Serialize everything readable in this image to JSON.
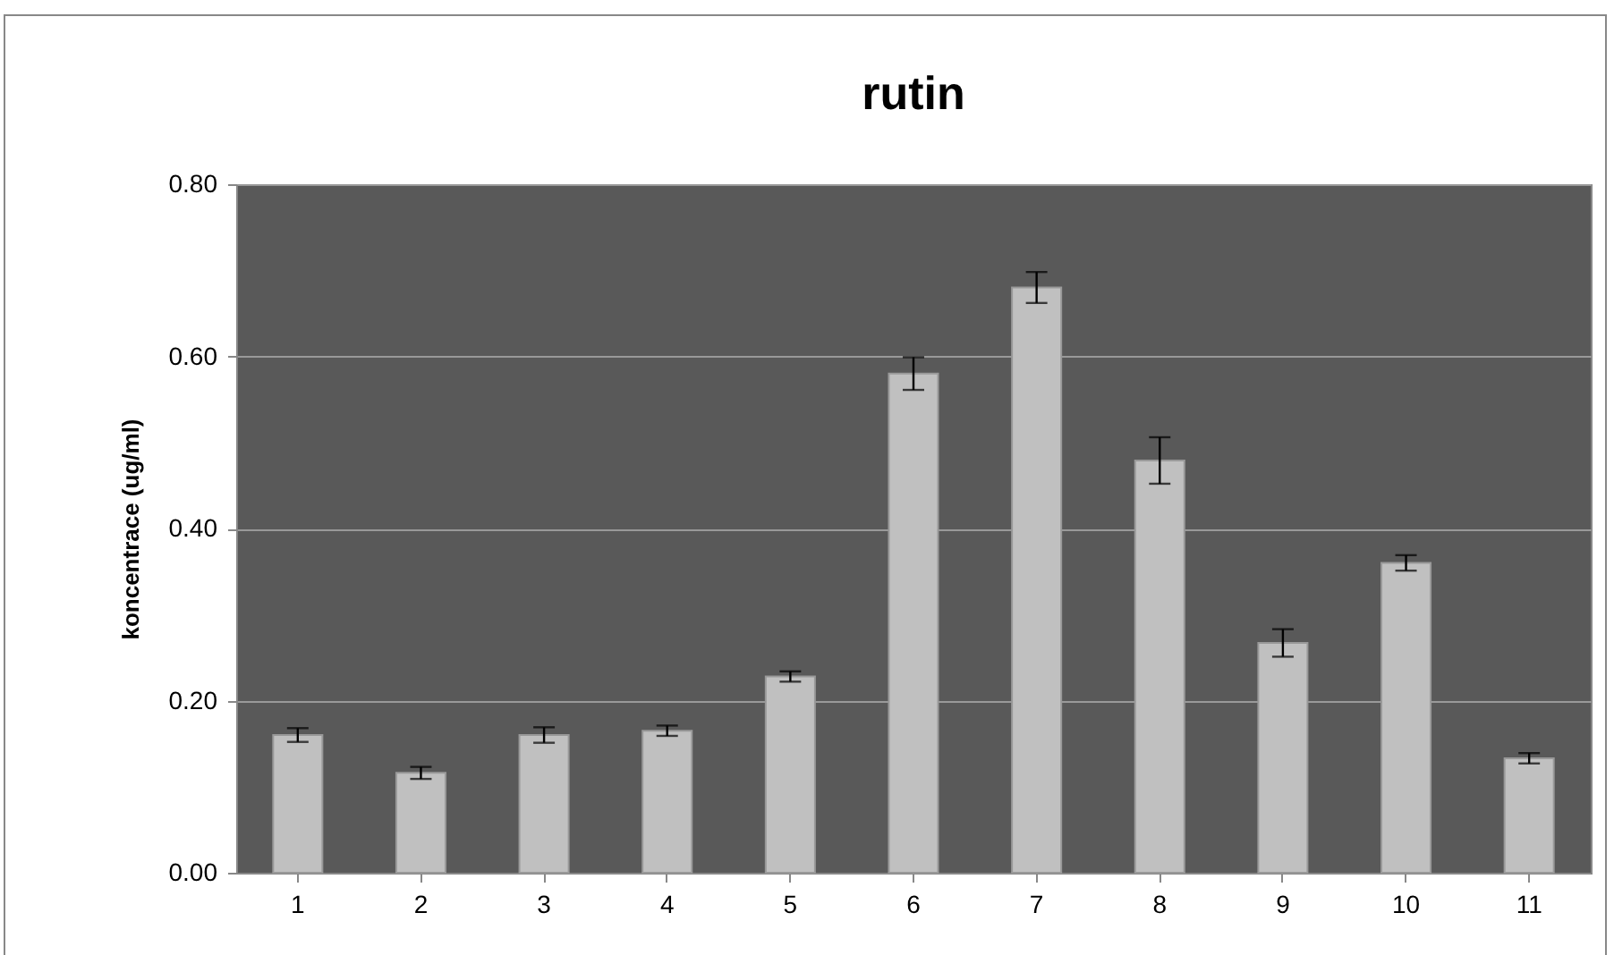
{
  "chart_data": {
    "type": "bar",
    "title": "rutin",
    "ylabel": "koncentrace (ug/ml)",
    "categories": [
      "1",
      "2",
      "3",
      "4",
      "5",
      "6",
      "7",
      "8",
      "9",
      "10",
      "11"
    ],
    "values": [
      0.16,
      0.116,
      0.16,
      0.165,
      0.228,
      0.58,
      0.68,
      0.479,
      0.267,
      0.36,
      0.133
    ],
    "errors": [
      0.008,
      0.007,
      0.009,
      0.006,
      0.006,
      0.019,
      0.018,
      0.027,
      0.016,
      0.009,
      0.006
    ],
    "color": "#c0c0c0",
    "ylim": [
      0,
      0.8
    ],
    "yticks": [
      {
        "value": 0,
        "label": "0.00"
      },
      {
        "value": 0.2,
        "label": "0.20"
      },
      {
        "value": 0.4,
        "label": "0.40"
      },
      {
        "value": 0.6,
        "label": "0.60"
      },
      {
        "value": 0.8,
        "label": "0.80"
      }
    ],
    "grid": true
  }
}
